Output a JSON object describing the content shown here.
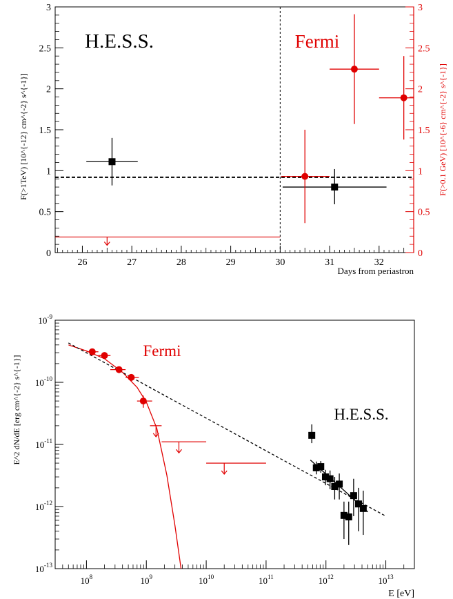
{
  "chart_data": [
    {
      "type": "scatter",
      "panel": "top",
      "xlabel": "Days from periastron",
      "ylabel_left": "F(>1TeV) [10^{-12} cm^{-2} s^{-1}]",
      "ylabel_right": "F(>0.1 GeV) [10^{-6} cm^{-2} s^{-1}]",
      "xlim": [
        25.45,
        32.7
      ],
      "ylim_left": [
        0,
        3
      ],
      "ylim_right": [
        0,
        3
      ],
      "x_ticks": [
        "26",
        "27",
        "28",
        "29",
        "30",
        "31",
        "32"
      ],
      "y_ticks_left": [
        "0",
        "0.5",
        "1",
        "1.5",
        "2",
        "2.5",
        "3"
      ],
      "y_ticks_right": [
        "0",
        "0.5",
        "1",
        "1.5",
        "2",
        "2.5",
        "3"
      ],
      "annotations": [
        {
          "text": "H.E.S.S.",
          "color": "#000000"
        },
        {
          "text": "Fermi",
          "color": "#e00000"
        }
      ],
      "vertical_divider_x": 30,
      "series": [
        {
          "name": "H.E.S.S.",
          "axis": "left",
          "color": "#000000",
          "marker": "square",
          "points": [
            {
              "x": 26.6,
              "y": 1.11,
              "xlo": 26.08,
              "xhi": 27.12,
              "ylo": 0.82,
              "yhi": 1.4
            },
            {
              "x": 31.1,
              "y": 0.8,
              "xlo": 30.05,
              "xhi": 32.15,
              "ylo": 0.59,
              "yhi": 1.02
            }
          ],
          "mean_level": 0.92
        },
        {
          "name": "Fermi",
          "axis": "right",
          "color": "#e00000",
          "marker": "circle",
          "points": [
            {
              "x": 30.5,
              "y": 0.93,
              "xlo": 30.02,
              "xhi": 31.0,
              "ylo": 0.36,
              "yhi": 1.5
            },
            {
              "x": 31.5,
              "y": 2.24,
              "xlo": 31.0,
              "xhi": 32.0,
              "ylo": 1.57,
              "yhi": 2.91
            },
            {
              "x": 32.5,
              "y": 1.89,
              "xlo": 32.0,
              "xhi": 32.7,
              "ylo": 1.38,
              "yhi": 2.4
            }
          ],
          "upper_limits": [
            {
              "x": 26.5,
              "xlo": 25.45,
              "xhi": 30.0,
              "y": 0.19
            }
          ]
        }
      ]
    },
    {
      "type": "scatter",
      "panel": "bottom",
      "xscale": "log",
      "yscale": "log",
      "xlabel": "E [eV]",
      "ylabel": "E^2 dN/dE [erg cm^{-2} s^{-1}]",
      "xlim": [
        30000000.0,
        30000000000000.0
      ],
      "ylim": [
        1e-13,
        1e-09
      ],
      "x_ticks": [
        "10^8",
        "10^9",
        "10^10",
        "10^11",
        "10^12",
        "10^13"
      ],
      "y_ticks": [
        "10^-13",
        "10^-12",
        "10^-11",
        "10^-10",
        "10^-9"
      ],
      "annotations": [
        {
          "text": "Fermi",
          "color": "#e00000"
        },
        {
          "text": "H.E.S.S.",
          "color": "#000000"
        }
      ],
      "series": [
        {
          "name": "Fermi",
          "color": "#e00000",
          "marker": "circle",
          "points": [
            {
              "x": 125000000.0,
              "y": 3.1e-10,
              "xlo": 100000000.0,
              "xhi": 158000000.0,
              "ylo": 2.7e-10,
              "yhi": 3.5e-10
            },
            {
              "x": 200000000.0,
              "y": 2.7e-10,
              "xlo": 158000000.0,
              "xhi": 2.5e-08,
              "ylo": 2.4e-10,
              "yhi": 3e-10
            },
            {
              "x": 350000000.0,
              "y": 1.6e-10,
              "xlo": 250000000.0,
              "xhi": 450000000.0,
              "ylo": 1.4e-10,
              "yhi": 1.8e-10
            },
            {
              "x": 560000000.0,
              "y": 1.2e-10,
              "xlo": 450000000.0,
              "xhi": 750000000.0,
              "ylo": 1.05e-10,
              "yhi": 1.35e-10
            },
            {
              "x": 890000000.0,
              "y": 5e-11,
              "xlo": 700000000.0,
              "xhi": 1250000000.0,
              "ylo": 3.9e-11,
              "yhi": 6.1e-11
            }
          ],
          "upper_limits": [
            {
              "x": 1450000000.0,
              "xlo": 1150000000.0,
              "xhi": 1800000000.0,
              "y": 2e-11
            },
            {
              "x": 3500000000.0,
              "xlo": 1800000000.0,
              "xhi": 10000000000.0,
              "y": 1.1e-11
            },
            {
              "x": 20000000000.0,
              "xlo": 10000000000.0,
              "xhi": 100000000000.0,
              "y": 5e-12
            }
          ],
          "model_curve": {
            "style": "solid",
            "color": "#e00000",
            "x": [
              50000000.0,
              100000000.0,
              200000000.0,
              400000000.0,
              700000000.0,
              1000000000.0,
              1500000000.0,
              2200000000.0,
              3000000000.0,
              3800000000.0
            ],
            "y": [
              4e-10,
              3.2e-10,
              2.4e-10,
              1.45e-10,
              8.3e-11,
              4.8e-11,
              1.8e-11,
              3.2e-12,
              5e-13,
              1e-13
            ]
          }
        },
        {
          "name": "H.E.S.S.",
          "color": "#000000",
          "marker": "square",
          "points": [
            {
              "x": 580000000000.0,
              "y": 1.4e-11,
              "ylo": 1.05e-11,
              "yhi": 2.1e-11
            },
            {
              "x": 690000000000.0,
              "y": 4.2e-12,
              "ylo": 3.3e-12,
              "yhi": 5.3e-12
            },
            {
              "x": 820000000000.0,
              "y": 4.4e-12,
              "ylo": 3.5e-12,
              "yhi": 5.4e-12
            },
            {
              "x": 980000000000.0,
              "y": 3e-12,
              "ylo": 2.2e-12,
              "yhi": 3.9e-12
            },
            {
              "x": 1170000000000.0,
              "y": 2.8e-12,
              "ylo": 1.9e-12,
              "yhi": 3.8e-12
            },
            {
              "x": 1400000000000.0,
              "y": 2.1e-12,
              "ylo": 1.3e-12,
              "yhi": 3e-12
            },
            {
              "x": 1670000000000.0,
              "y": 2.3e-12,
              "ylo": 1.3e-12,
              "yhi": 3.4e-12
            },
            {
              "x": 2000000000000.0,
              "y": 7.2e-13,
              "ylo": 3e-13,
              "yhi": 1.2e-12
            },
            {
              "x": 2400000000000.0,
              "y": 6.8e-13,
              "ylo": 2.4e-13,
              "yhi": 1.2e-12
            },
            {
              "x": 2900000000000.0,
              "y": 1.5e-12,
              "ylo": 7e-13,
              "yhi": 2.8e-12
            },
            {
              "x": 3500000000000.0,
              "y": 1.1e-12,
              "ylo": 4e-13,
              "yhi": 2e-12
            },
            {
              "x": 4200000000000.0,
              "y": 9.3e-13,
              "ylo": 3.5e-13,
              "yhi": 1.8e-12
            }
          ],
          "model_curve": {
            "style": "solid",
            "color": "#000000",
            "x": [
              550000000000.0,
              5000000000000.0
            ],
            "y": [
              5.6e-12,
              8.2e-13
            ]
          }
        },
        {
          "name": "power-law",
          "color": "#000000",
          "model_curve": {
            "style": "dashed",
            "color": "#000000",
            "x": [
              50000000.0,
              10000000000000.0
            ],
            "y": [
              4.3e-10,
              7e-13
            ]
          }
        }
      ]
    }
  ]
}
